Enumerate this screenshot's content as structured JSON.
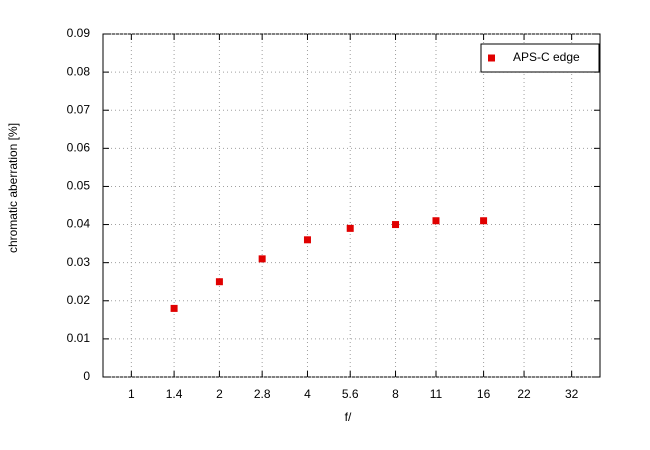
{
  "chart_data": {
    "type": "scatter",
    "x_label": "f/",
    "y_label": "chromatic aberration [%]",
    "x_scale": "log",
    "xlim": [
      0.8,
      40
    ],
    "xticks": [
      1,
      1.4,
      2,
      2.8,
      4,
      5.6,
      8,
      11,
      16,
      22,
      32
    ],
    "ylim": [
      0,
      0.09
    ],
    "yticks": [
      0,
      0.01,
      0.02,
      0.03,
      0.04,
      0.05,
      0.06,
      0.07,
      0.08,
      0.09
    ],
    "grid": true,
    "legend": "top-right",
    "series": [
      {
        "name": "APS-C edge",
        "color": "#e00000",
        "x": [
          1.4,
          2,
          2.8,
          4,
          5.6,
          8,
          11,
          16
        ],
        "values": [
          0.018,
          0.025,
          0.031,
          0.036,
          0.039,
          0.04,
          0.041,
          0.041
        ]
      }
    ]
  }
}
